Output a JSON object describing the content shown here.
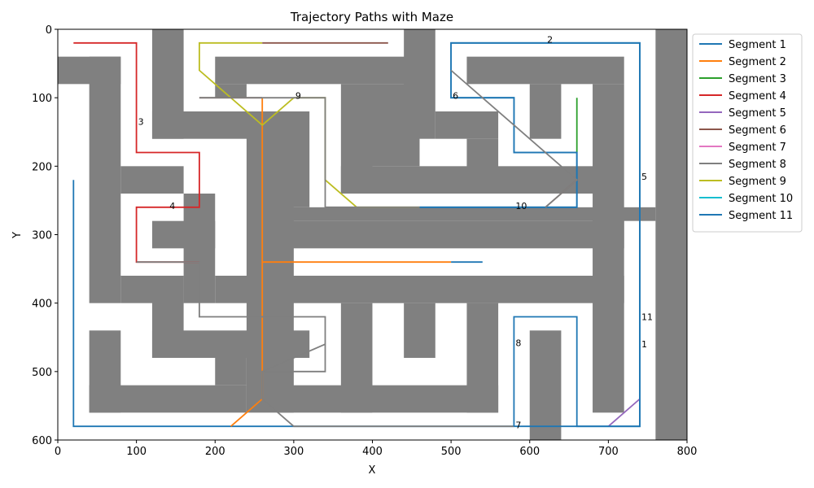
{
  "chart_data": {
    "type": "line",
    "title": "Trajectory Paths with Maze",
    "xlabel": "X",
    "ylabel": "Y",
    "xlim": [
      0,
      800
    ],
    "ylim": [
      600,
      0
    ],
    "y_inverted": true,
    "xticks": [
      0,
      100,
      200,
      300,
      400,
      500,
      600,
      700,
      800
    ],
    "yticks": [
      0,
      100,
      200,
      300,
      400,
      500,
      600
    ],
    "legend_position": "outside-right-top",
    "maze_color": "#808080",
    "maze_walls": [
      [
        0,
        40,
        80,
        80
      ],
      [
        40,
        40,
        80,
        400
      ],
      [
        80,
        360,
        160,
        400
      ],
      [
        80,
        200,
        160,
        240
      ],
      [
        120,
        0,
        160,
        160
      ],
      [
        120,
        120,
        300,
        160
      ],
      [
        160,
        240,
        200,
        400
      ],
      [
        120,
        280,
        200,
        320
      ],
      [
        240,
        120,
        300,
        560
      ],
      [
        200,
        360,
        560,
        400
      ],
      [
        120,
        360,
        160,
        480
      ],
      [
        120,
        440,
        320,
        480
      ],
      [
        200,
        480,
        240,
        520
      ],
      [
        40,
        440,
        80,
        560
      ],
      [
        40,
        520,
        240,
        560
      ],
      [
        200,
        40,
        460,
        80
      ],
      [
        200,
        80,
        240,
        100
      ],
      [
        280,
        120,
        320,
        260
      ],
      [
        280,
        260,
        760,
        280
      ],
      [
        280,
        280,
        720,
        320
      ],
      [
        360,
        80,
        400,
        240
      ],
      [
        360,
        200,
        700,
        240
      ],
      [
        400,
        80,
        460,
        200
      ],
      [
        440,
        0,
        480,
        160
      ],
      [
        480,
        120,
        560,
        160
      ],
      [
        520,
        160,
        560,
        240
      ],
      [
        520,
        40,
        720,
        80
      ],
      [
        600,
        80,
        640,
        160
      ],
      [
        680,
        80,
        720,
        560
      ],
      [
        520,
        360,
        720,
        400
      ],
      [
        520,
        400,
        560,
        560
      ],
      [
        440,
        400,
        480,
        480
      ],
      [
        360,
        400,
        400,
        560
      ],
      [
        280,
        520,
        560,
        560
      ],
      [
        760,
        0,
        800,
        600
      ],
      [
        600,
        440,
        640,
        600
      ]
    ],
    "series": [
      {
        "name": "Segment 1",
        "color": "#1f77b4",
        "points": [
          [
            20,
            220
          ],
          [
            20,
            580
          ],
          [
            740,
            580
          ],
          [
            740,
            20
          ],
          [
            500,
            20
          ],
          [
            500,
            100
          ],
          [
            580,
            100
          ],
          [
            580,
            180
          ],
          [
            660,
            180
          ],
          [
            660,
            260
          ],
          [
            460,
            260
          ]
        ]
      },
      {
        "name": "Segment 2",
        "color": "#ff7f0e",
        "points": [
          [
            220,
            580
          ],
          [
            260,
            540
          ],
          [
            260,
            100
          ],
          [
            260,
            340
          ],
          [
            500,
            340
          ]
        ]
      },
      {
        "name": "Segment 3",
        "color": "#2ca02c",
        "points": [
          [
            660,
            100
          ],
          [
            660,
            180
          ]
        ]
      },
      {
        "name": "Segment 4",
        "color": "#d62728",
        "points": [
          [
            20,
            20
          ],
          [
            100,
            20
          ],
          [
            100,
            180
          ],
          [
            180,
            180
          ],
          [
            180,
            260
          ],
          [
            100,
            260
          ],
          [
            100,
            340
          ],
          [
            180,
            340
          ]
        ]
      },
      {
        "name": "Segment 5",
        "color": "#9467bd",
        "points": [
          [
            700,
            580
          ],
          [
            740,
            540
          ]
        ]
      },
      {
        "name": "Segment 6",
        "color": "#8c564b",
        "points": [
          [
            620,
            260
          ],
          [
            660,
            220
          ]
        ]
      },
      {
        "name": "Segment 7",
        "color": "#e377c2",
        "points": []
      },
      {
        "name": "Segment 8",
        "color": "#7f7f7f",
        "points": [
          [
            100,
            340
          ],
          [
            180,
            340
          ],
          [
            180,
            420
          ],
          [
            340,
            420
          ],
          [
            340,
            500
          ],
          [
            260,
            500
          ],
          [
            260,
            540
          ],
          [
            300,
            580
          ],
          [
            580,
            580
          ]
        ]
      },
      {
        "name": "Segment 9",
        "color": "#bcbd22",
        "points": [
          [
            180,
            20
          ],
          [
            260,
            20
          ],
          [
            180,
            20
          ],
          [
            180,
            60
          ],
          [
            260,
            140
          ],
          [
            300,
            100
          ],
          [
            340,
            100
          ],
          [
            340,
            220
          ],
          [
            380,
            260
          ],
          [
            460,
            260
          ]
        ]
      },
      {
        "name": "Segment 10",
        "color": "#17becf",
        "points": []
      },
      {
        "name": "Segment 11",
        "color": "#1f77b4",
        "points": [
          [
            460,
            260
          ],
          [
            660,
            260
          ],
          [
            660,
            180
          ],
          [
            580,
            180
          ],
          [
            580,
            100
          ],
          [
            500,
            100
          ],
          [
            500,
            20
          ],
          [
            740,
            20
          ],
          [
            740,
            580
          ],
          [
            660,
            580
          ],
          [
            660,
            420
          ],
          [
            580,
            420
          ],
          [
            580,
            580
          ]
        ]
      },
      {
        "name": "",
        "color": "#8c564b",
        "points": [
          [
            260,
            20
          ],
          [
            420,
            20
          ]
        ]
      },
      {
        "name": "",
        "color": "#8c564b",
        "points": [
          [
            180,
            100
          ],
          [
            260,
            100
          ]
        ]
      },
      {
        "name": "",
        "color": "#7f7f7f",
        "points": [
          [
            180,
            100
          ],
          [
            340,
            100
          ],
          [
            340,
            260
          ],
          [
            460,
            260
          ]
        ]
      },
      {
        "name": "",
        "color": "#7f7f7f",
        "points": [
          [
            500,
            60
          ],
          [
            660,
            220
          ],
          [
            620,
            260
          ]
        ]
      },
      {
        "name": "",
        "color": "#7f7f7f",
        "points": [
          [
            260,
            500
          ],
          [
            340,
            460
          ]
        ]
      },
      {
        "name": "",
        "color": "#1f77b4",
        "points": [
          [
            500,
            340
          ],
          [
            540,
            340
          ]
        ]
      }
    ],
    "annotations": [
      {
        "text": "1",
        "x": 740,
        "y": 460
      },
      {
        "text": "2",
        "x": 620,
        "y": 15
      },
      {
        "text": "3",
        "x": 100,
        "y": 135
      },
      {
        "text": "4",
        "x": 140,
        "y": 258
      },
      {
        "text": "5",
        "x": 740,
        "y": 215
      },
      {
        "text": "6",
        "x": 500,
        "y": 97
      },
      {
        "text": "7",
        "x": 580,
        "y": 578
      },
      {
        "text": "8",
        "x": 580,
        "y": 458
      },
      {
        "text": "9",
        "x": 300,
        "y": 97
      },
      {
        "text": "10",
        "x": 580,
        "y": 258
      },
      {
        "text": "11",
        "x": 740,
        "y": 420
      }
    ]
  }
}
